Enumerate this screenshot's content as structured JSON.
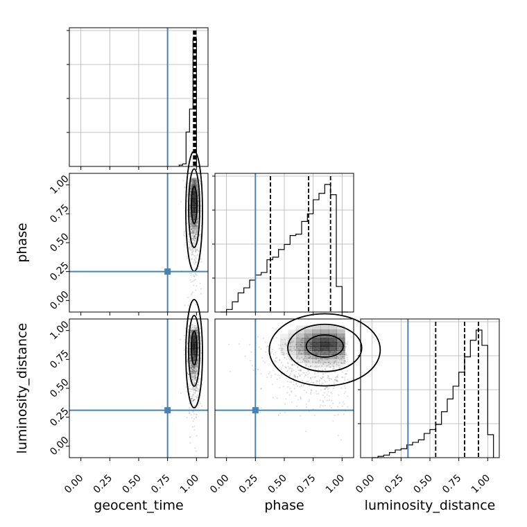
{
  "chart_data": {
    "type": "corner",
    "parameters": [
      "geocent_time",
      "phase",
      "luminosity_distance"
    ],
    "tick_labels": [
      "0.00",
      "0.25",
      "0.50",
      "0.75",
      "1.00"
    ],
    "tick_values": [
      0,
      0.25,
      0.5,
      0.75,
      1.0
    ],
    "xlim": [
      -0.1,
      1.1
    ],
    "truths": {
      "geocent_time": 0.75,
      "phase": 0.25,
      "luminosity_distance": 0.31
    },
    "truth_color": "#4682b4",
    "grid": true,
    "histograms": {
      "geocent_time": {
        "quantiles": [
          0.975,
          0.985,
          0.995
        ],
        "bin_edges": [
          0.85,
          0.88,
          0.91,
          0.94,
          0.97,
          1.0,
          1.03
        ],
        "counts": [
          0.01,
          0.02,
          0.27,
          0.45,
          1.0,
          0.0
        ]
      },
      "phase": {
        "quantiles": [
          0.38,
          0.71,
          0.9
        ],
        "bin_edges": [
          -0.05,
          0.0,
          0.05,
          0.1,
          0.15,
          0.2,
          0.25,
          0.3,
          0.35,
          0.4,
          0.45,
          0.5,
          0.55,
          0.6,
          0.65,
          0.7,
          0.75,
          0.8,
          0.85,
          0.9,
          0.95,
          1.0,
          1.05
        ],
        "counts": [
          0.0,
          0.02,
          0.08,
          0.15,
          0.19,
          0.25,
          0.29,
          0.31,
          0.41,
          0.43,
          0.49,
          0.53,
          0.6,
          0.61,
          0.71,
          0.77,
          0.88,
          0.93,
          1.0,
          0.92,
          0.2,
          0.0
        ]
      },
      "luminosity_distance": {
        "quantiles": [
          0.55,
          0.8,
          0.92
        ],
        "bin_edges": [
          0.0,
          0.05,
          0.1,
          0.15,
          0.2,
          0.25,
          0.3,
          0.35,
          0.4,
          0.45,
          0.5,
          0.55,
          0.6,
          0.65,
          0.7,
          0.75,
          0.8,
          0.85,
          0.9,
          0.95,
          1.0,
          1.05
        ],
        "counts": [
          0.0,
          0.01,
          0.02,
          0.04,
          0.06,
          0.07,
          0.1,
          0.12,
          0.14,
          0.19,
          0.22,
          0.26,
          0.36,
          0.46,
          0.56,
          0.67,
          0.79,
          0.92,
          1.0,
          0.88,
          0.18
        ]
      }
    },
    "pairs": [
      {
        "x": "geocent_time",
        "y": "phase",
        "center": [
          0.98,
          0.85
        ],
        "spread": [
          0.03,
          0.2
        ]
      },
      {
        "x": "geocent_time",
        "y": "luminosity_distance",
        "center": [
          0.98,
          0.87
        ],
        "spread": [
          0.03,
          0.18
        ]
      },
      {
        "x": "phase",
        "y": "luminosity_distance",
        "center": [
          0.85,
          0.88
        ],
        "spread": [
          0.2,
          0.12
        ]
      }
    ]
  }
}
